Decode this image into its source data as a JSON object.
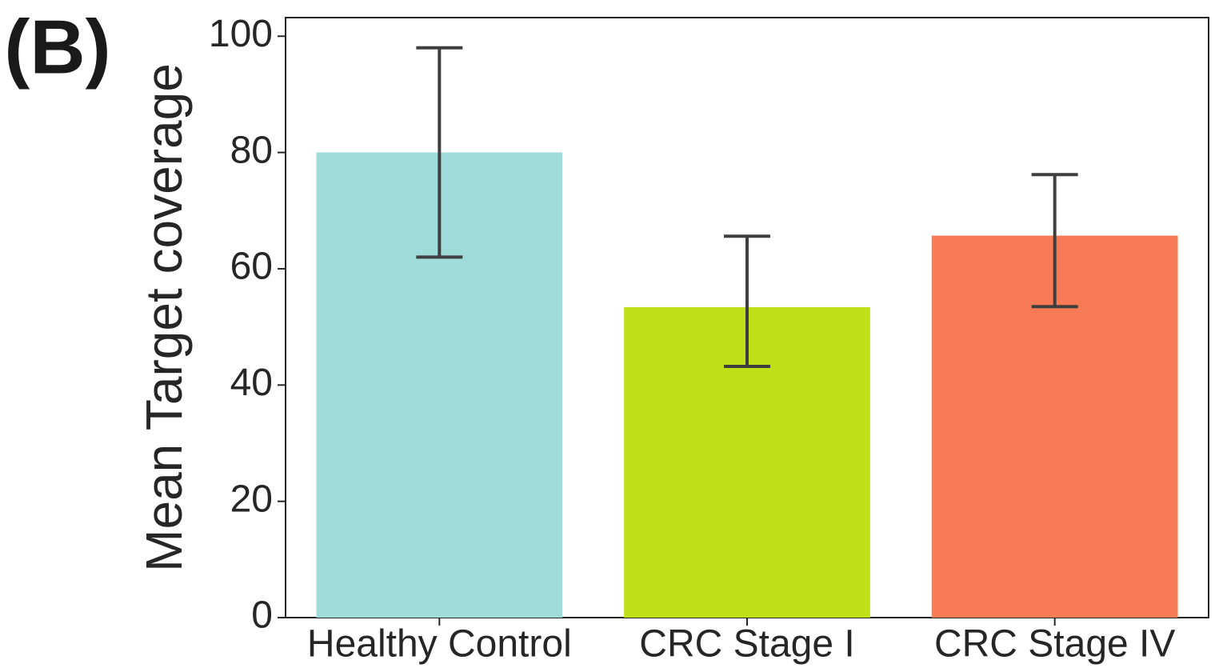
{
  "panel_label": "(B)",
  "chart_data": {
    "type": "bar",
    "y_label": "Mean Target coverage",
    "categories": [
      "Healthy Control",
      "CRC Stage I",
      "CRC Stage IV"
    ],
    "values": [
      80,
      53.4,
      65.7
    ],
    "errors": [
      [
        18,
        18
      ],
      [
        10.2,
        12.2
      ],
      [
        12.2,
        10.5
      ]
    ],
    "colors": [
      "#9fdbd9",
      "#bfe018",
      "#f77c55"
    ],
    "error_color": "#3f3f3f",
    "ylim": [
      0,
      103.2
    ],
    "yticks": [
      0,
      20,
      40,
      60,
      80,
      100
    ],
    "grid": false
  }
}
